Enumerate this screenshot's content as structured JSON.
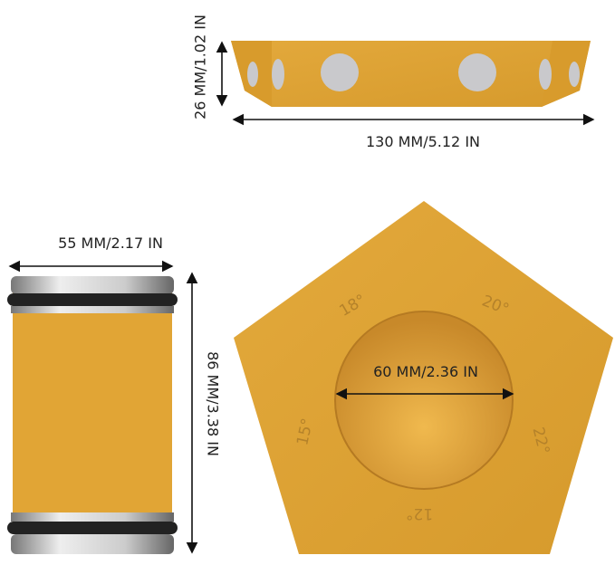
{
  "dimensions": {
    "bar_height": "26 MM/1.02 IN",
    "bar_length": "130 MM/5.12 IN",
    "cylinder_diameter": "55 MM/2.17 IN",
    "cylinder_height": "86 MM/3.38 IN",
    "hole_diameter": "60 MM/2.36 IN"
  },
  "angles": [
    "18°",
    "20°",
    "15°",
    "22°",
    "12°"
  ]
}
